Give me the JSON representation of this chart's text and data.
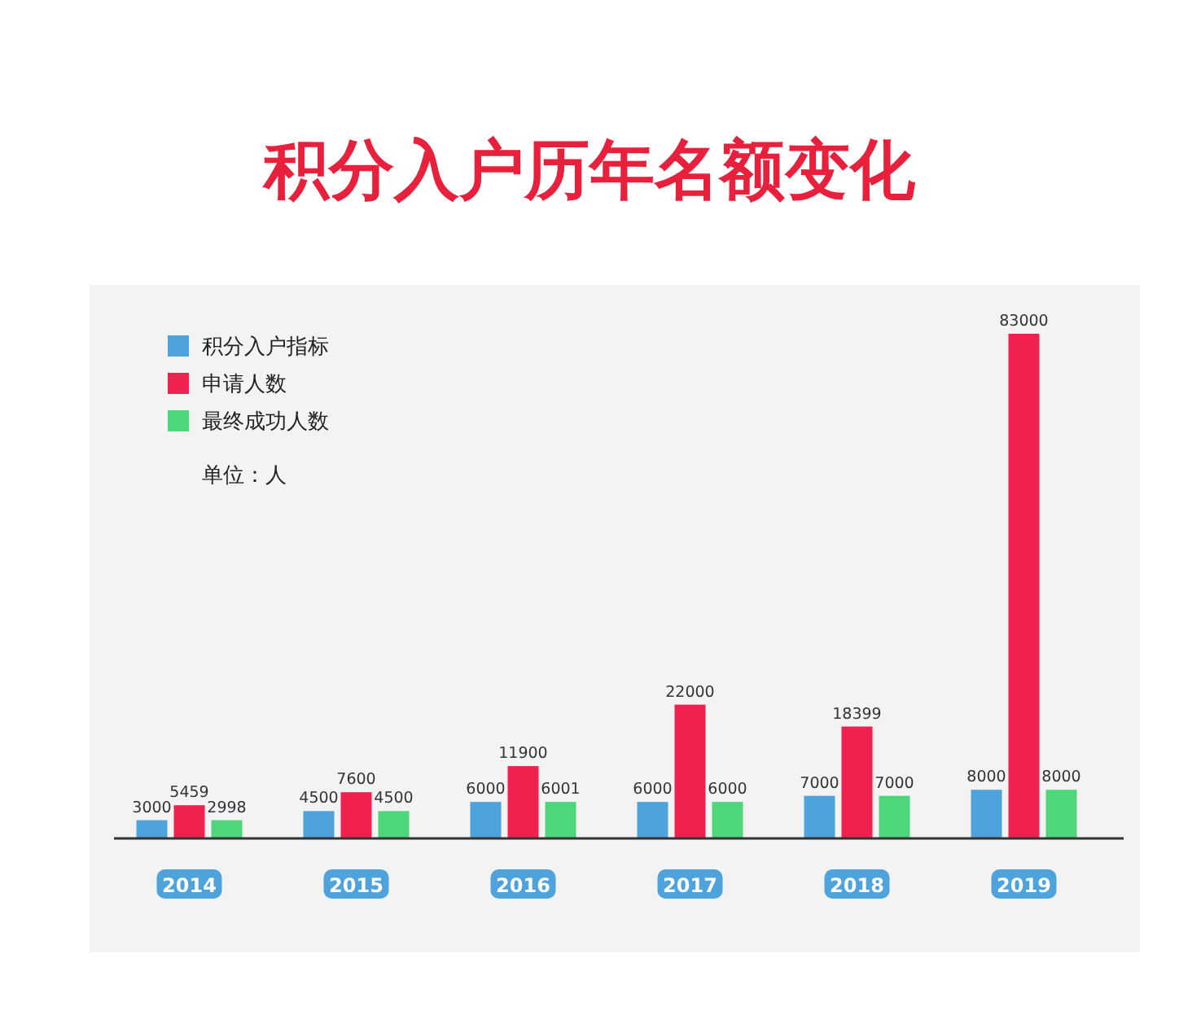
{
  "chart_data": {
    "type": "bar",
    "title": "积分入户历年名额变化",
    "categories": [
      "2014",
      "2015",
      "2016",
      "2017",
      "2018",
      "2019"
    ],
    "series": [
      {
        "name": "积分入户指标",
        "color": "#4fa3dc",
        "values": [
          3000,
          4500,
          6000,
          6000,
          7000,
          8000
        ]
      },
      {
        "name": "申请人数",
        "color": "#f0204f",
        "values": [
          5459,
          7600,
          11900,
          22000,
          18399,
          83000
        ]
      },
      {
        "name": "最终成功人数",
        "color": "#4dd67a",
        "values": [
          2998,
          4500,
          6001,
          6000,
          7000,
          8000
        ]
      }
    ],
    "data_labels": true,
    "legend": "top left",
    "tick_labels": "x",
    "annotations": [
      "单位：人"
    ]
  }
}
